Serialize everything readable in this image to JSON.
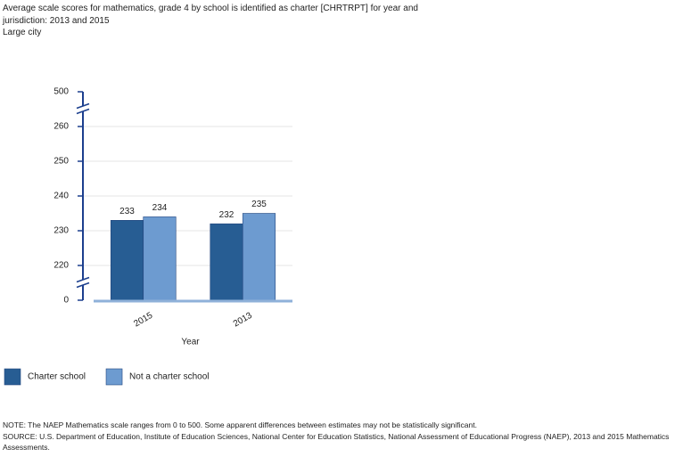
{
  "chart_data": {
    "type": "bar",
    "title": "Average scale scores for mathematics, grade 4 by school is identified as charter [CHRTRPT] for year and jurisdiction: 2013 and 2015",
    "subtitle": "Large city",
    "x_label": "Year",
    "categories": [
      "2015",
      "2013"
    ],
    "series": [
      {
        "name": "Charter school",
        "color": "#275d93",
        "values": [
          233,
          232
        ]
      },
      {
        "name": "Not a charter school",
        "color": "#6d9bd0",
        "values": [
          234,
          235
        ]
      }
    ],
    "ylim": [
      0,
      500
    ],
    "yticks": [
      0,
      220,
      230,
      240,
      250,
      260,
      500
    ],
    "axis_breaks": true,
    "grid": true,
    "notes": [
      "NOTE: The NAEP Mathematics scale ranges from 0 to 500. Some apparent differences between estimates may not be statistically significant.",
      "SOURCE: U.S. Department of Education, Institute of Education Sciences, National Center for Education Statistics, National Assessment of Educational Progress (NAEP), 2013 and 2015 Mathematics Assessments."
    ]
  }
}
